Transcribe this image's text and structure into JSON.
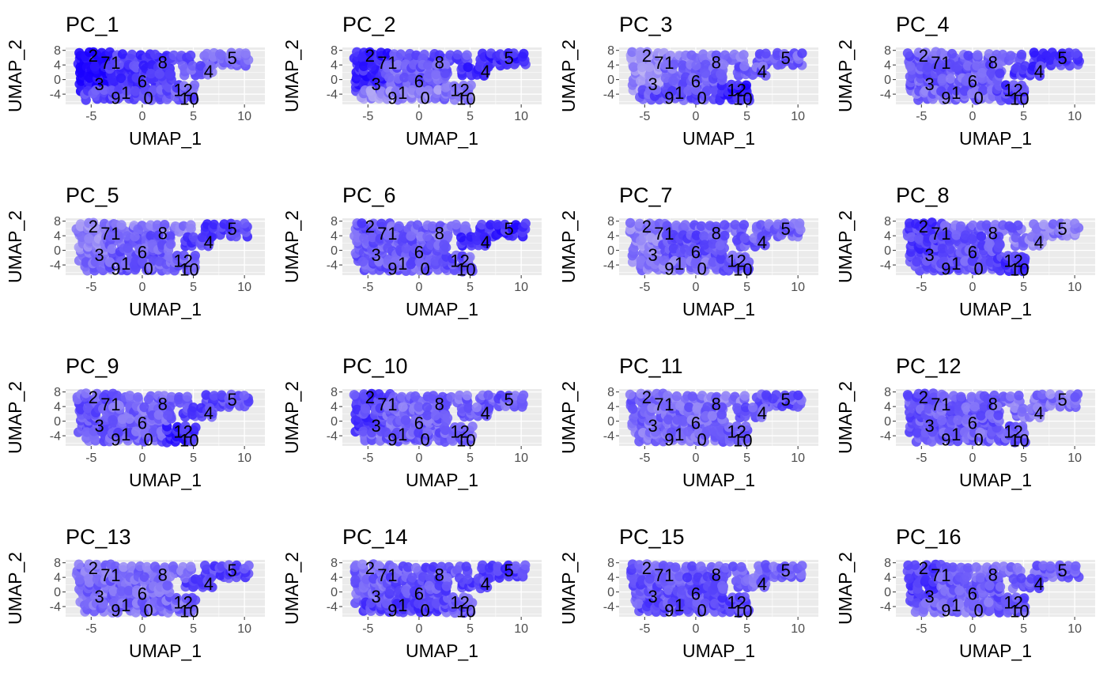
{
  "chart_data": {
    "type": "scatter",
    "layout": {
      "rows": 4,
      "cols": 4
    },
    "xlabel": "UMAP_1",
    "ylabel": "UMAP_2",
    "xticks": [
      -5,
      0,
      5,
      10
    ],
    "yticks": [
      8,
      4,
      0,
      -4
    ],
    "xlim": [
      -7.5,
      12
    ],
    "ylim": [
      -6.8,
      8.8
    ],
    "grid": true,
    "panel_background": "#ebebeb",
    "gridline_color": "#ffffff",
    "color_low": "#d9d2f2",
    "color_high": "#1a00ff",
    "cluster_labels": [
      {
        "text": "2",
        "x": -4.8,
        "y": 6.6
      },
      {
        "text": "7",
        "x": -3.6,
        "y": 4.7
      },
      {
        "text": "1",
        "x": -2.6,
        "y": 4.7
      },
      {
        "text": "8",
        "x": 2.0,
        "y": 4.8
      },
      {
        "text": "5",
        "x": 8.8,
        "y": 6.0
      },
      {
        "text": "4",
        "x": 6.5,
        "y": 2.3
      },
      {
        "text": "3",
        "x": -4.2,
        "y": -1.2
      },
      {
        "text": "6",
        "x": 0.0,
        "y": -0.4
      },
      {
        "text": "12",
        "x": 4.0,
        "y": -2.8
      },
      {
        "text": "9",
        "x": -2.6,
        "y": -5.0
      },
      {
        "text": "1",
        "x": -1.6,
        "y": -3.6
      },
      {
        "text": "0",
        "x": 0.6,
        "y": -5.0
      },
      {
        "text": "10",
        "x": 4.6,
        "y": -5.2
      }
    ],
    "panels": [
      {
        "title": "PC_1",
        "values": {
          "topleft": 1.0,
          "topstrip": 0.72,
          "right": 0.55,
          "mid": 0.72,
          "bottom": 0.62,
          "bottomright": 0.58
        }
      },
      {
        "title": "PC_2",
        "values": {
          "topleft": 0.82,
          "topstrip": 0.65,
          "right": 0.78,
          "mid": 0.55,
          "bottom": 0.35,
          "bottomright": 0.48
        }
      },
      {
        "title": "PC_3",
        "values": {
          "topleft": 0.3,
          "topstrip": 0.45,
          "right": 0.55,
          "mid": 0.52,
          "bottom": 0.6,
          "bottomright": 0.85
        }
      },
      {
        "title": "PC_4",
        "values": {
          "topleft": 0.58,
          "topstrip": 0.55,
          "right": 0.72,
          "mid": 0.55,
          "bottom": 0.5,
          "bottomright": 0.7
        }
      },
      {
        "title": "PC_5",
        "values": {
          "topleft": 0.4,
          "topstrip": 0.45,
          "right": 0.7,
          "mid": 0.55,
          "bottom": 0.55,
          "bottomright": 0.55
        }
      },
      {
        "title": "PC_6",
        "values": {
          "topleft": 0.58,
          "topstrip": 0.5,
          "right": 0.8,
          "mid": 0.55,
          "bottom": 0.55,
          "bottomright": 0.58
        }
      },
      {
        "title": "PC_7",
        "values": {
          "topleft": 0.4,
          "topstrip": 0.5,
          "right": 0.55,
          "mid": 0.62,
          "bottom": 0.45,
          "bottomright": 0.6
        }
      },
      {
        "title": "PC_8",
        "values": {
          "topleft": 0.7,
          "topstrip": 0.55,
          "right": 0.4,
          "mid": 0.6,
          "bottom": 0.62,
          "bottomright": 0.72
        }
      },
      {
        "title": "PC_9",
        "values": {
          "topleft": 0.58,
          "topstrip": 0.5,
          "right": 0.65,
          "mid": 0.5,
          "bottom": 0.55,
          "bottomright": 0.82
        }
      },
      {
        "title": "PC_10",
        "values": {
          "topleft": 0.7,
          "topstrip": 0.5,
          "right": 0.55,
          "mid": 0.52,
          "bottom": 0.55,
          "bottomright": 0.5
        }
      },
      {
        "title": "PC_11",
        "values": {
          "topleft": 0.5,
          "topstrip": 0.42,
          "right": 0.6,
          "mid": 0.5,
          "bottom": 0.48,
          "bottomright": 0.55
        }
      },
      {
        "title": "PC_12",
        "values": {
          "topleft": 0.58,
          "topstrip": 0.5,
          "right": 0.45,
          "mid": 0.55,
          "bottom": 0.52,
          "bottomright": 0.6
        }
      },
      {
        "title": "PC_13",
        "values": {
          "topleft": 0.48,
          "topstrip": 0.45,
          "right": 0.65,
          "mid": 0.5,
          "bottom": 0.5,
          "bottomright": 0.5
        }
      },
      {
        "title": "PC_14",
        "values": {
          "topleft": 0.5,
          "topstrip": 0.6,
          "right": 0.7,
          "mid": 0.62,
          "bottom": 0.68,
          "bottomright": 0.6
        }
      },
      {
        "title": "PC_15",
        "values": {
          "topleft": 0.6,
          "topstrip": 0.55,
          "right": 0.55,
          "mid": 0.62,
          "bottom": 0.62,
          "bottomright": 0.65
        }
      },
      {
        "title": "PC_16",
        "values": {
          "topleft": 0.68,
          "topstrip": 0.5,
          "right": 0.55,
          "mid": 0.55,
          "bottom": 0.52,
          "bottomright": 0.58
        }
      }
    ]
  }
}
